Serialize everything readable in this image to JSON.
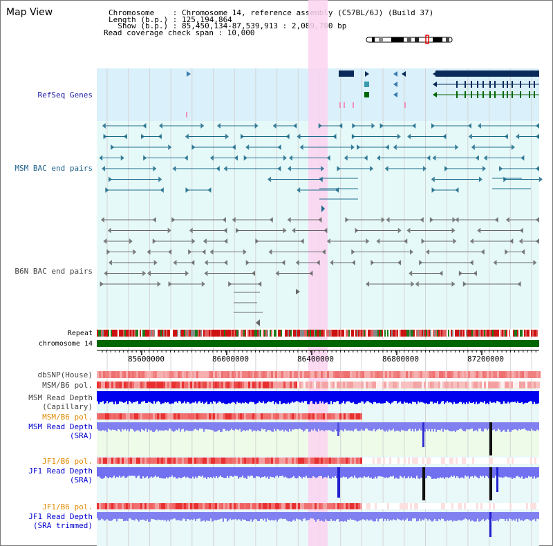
{
  "header": {
    "title": "Map View",
    "lines": [
      "Chromosome    : Chromosome 14, reference assembly (C57BL/6J) (Build 37)",
      "Length (b.p.) : 125,194,864",
      "  Show (b.p.) : 85,450,134-87,539,913 : 2,089,780 bp",
      "Read coverage check span : 10,000"
    ]
  },
  "tracks": {
    "refseq": "RefSeq Genes",
    "msm_bac": "MSM BAC end pairs",
    "b6n_bac": "B6N BAC end pairs",
    "repeat": "Repeat",
    "chromosome": "chromosome 14",
    "dbsnp": "dbSNP(House)",
    "msm_b6_pol_1": "MSM/B6 pol.",
    "msm_read_cap_1": "MSM Read Depth",
    "msm_read_cap_2": "(Capillary)",
    "msm_b6_pol_2": "MSM/B6 pol.",
    "msm_read_sra_1": "MSM Read Depth",
    "msm_read_sra_2": "(SRA)",
    "jf1_b6_pol_1": "JF1/B6 pol.",
    "jf1_read_sra_1": "JF1 Read Depth",
    "jf1_read_sra_2": "(SRA)",
    "jf1_b6_pol_2": "JF1/B6 pol.",
    "jf1_read_trim_1": "JF1 Read Depth",
    "jf1_read_trim_2": "(SRA trimmed)"
  },
  "axis": {
    "ticks": [
      "85600000",
      "86000000",
      "86400000",
      "86800000",
      "87200000"
    ]
  },
  "colors": {
    "refseq_bg": "#daf0fa",
    "bac_bg": "#e6f9f9",
    "highlight": "#fbd4f0",
    "gene": "#0a2a5a",
    "msm_pair": "#1a6a8a",
    "b6n_pair": "#666666",
    "chromosome": "#006600",
    "depth_dark": "#0000ee",
    "depth_light": "#7070f0",
    "pol_red": "#e03030"
  }
}
